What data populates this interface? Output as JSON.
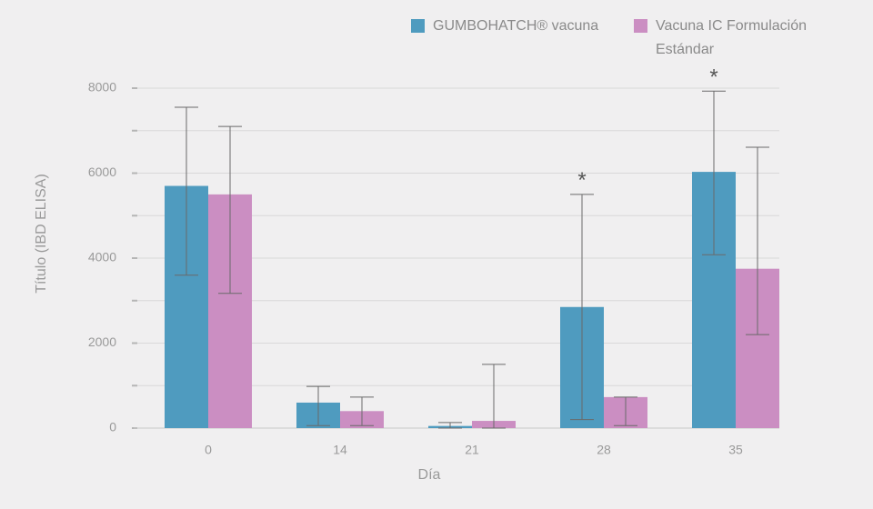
{
  "chart_data": {
    "type": "bar",
    "x_label": "Día",
    "y_label": "Título (IBD ELISA)",
    "categories": [
      "0",
      "14",
      "21",
      "28",
      "35"
    ],
    "series": [
      {
        "name": "GUMBOHATCH® vacuna",
        "color": "#4f9bbf",
        "values": [
          5700,
          600,
          50,
          2850,
          6030
        ],
        "error_high": [
          1850,
          380,
          80,
          2650,
          1900
        ],
        "error_low": [
          2100,
          540,
          50,
          2650,
          1950
        ]
      },
      {
        "name": "Vacuna IC Formulación Estándar",
        "color": "#cb8ec2",
        "values": [
          5500,
          400,
          170,
          730,
          3750
        ],
        "error_high": [
          1600,
          330,
          1330,
          0,
          2860
        ],
        "error_low": [
          2330,
          340,
          170,
          670,
          1550
        ]
      }
    ],
    "annotations": [
      {
        "text": "*",
        "category": "28"
      },
      {
        "text": "*",
        "category": "35"
      }
    ],
    "ylim": [
      0,
      8000
    ],
    "yticks": [
      0,
      2000,
      4000,
      6000,
      8000
    ],
    "minor_yticks": [
      1000,
      3000,
      5000,
      7000
    ],
    "grid": true
  }
}
